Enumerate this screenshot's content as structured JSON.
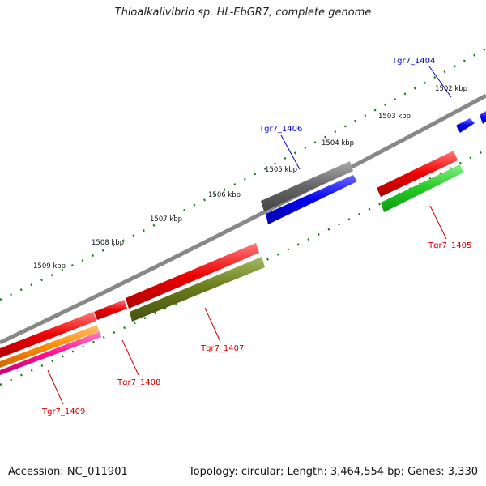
{
  "title": "Thioalkalivibrio sp. HL-EbGR7, complete genome",
  "footer": {
    "accession": "Accession: NC_011901",
    "topology": "Topology: circular; Length: 3,464,554 bp; Genes: 3,330"
  },
  "scale_labels": [
    "1502 kbp",
    "1503 kbp",
    "1504 kbp",
    "1505 kbp",
    "1506 kbp",
    "1507 kbp",
    "1508 kbp",
    "1509 kbp"
  ],
  "genes": [
    {
      "id": "Tgr7_1404",
      "strand": "forward",
      "color": "#0000ee",
      "label_color": "#0000cc"
    },
    {
      "id": "Tgr7_1405",
      "strand": "reverse",
      "color": "#22cc22",
      "label_color": "#cc0000"
    },
    {
      "id": "Tgr7_1406",
      "strand": "forward",
      "color": "#0000ee",
      "label_color": "#0000cc"
    },
    {
      "id": "Tgr7_1407",
      "strand": "reverse",
      "color": "#667a1a",
      "label_color": "#cc0000"
    },
    {
      "id": "Tgr7_1408",
      "strand": "forward",
      "color": "#ee0000",
      "label_color": "#cc0000"
    },
    {
      "id": "Tgr7_1409",
      "strand": "reverse",
      "color": "#ff1493",
      "label_color": "#cc0000"
    }
  ],
  "colors": {
    "backbone": "#888888",
    "ticks": "#1a7a1a",
    "cds": "#ee0000",
    "gray_feature": "#666666",
    "orange_feature": "#ff8c00"
  }
}
